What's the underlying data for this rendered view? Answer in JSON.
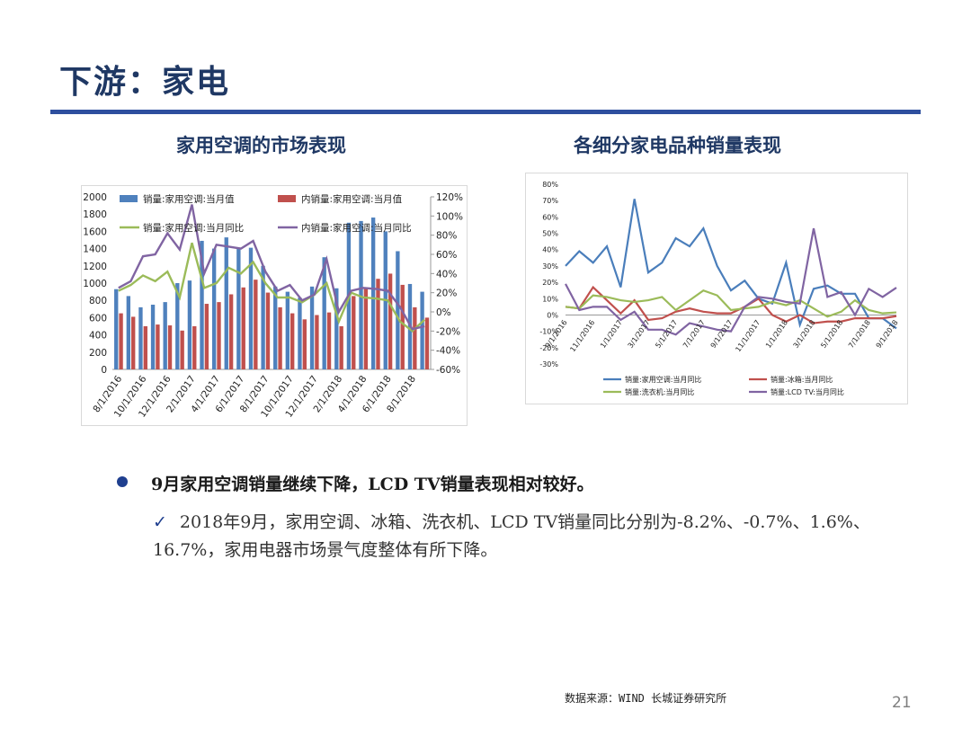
{
  "slide": {
    "title": "下游：家电",
    "bullet": "9月家用空调销量继续下降，LCD TV销量表现相对较好。",
    "check_mark": "✓",
    "detail": "2018年9月，家用空调、冰箱、洗衣机、LCD TV销量同比分别为-8.2%、-0.7%、1.6%、16.7%，家用电器市场景气度整体有所下降。",
    "source": "数据来源：WIND  长城证券研究所",
    "page_number": "21"
  },
  "chart_data": [
    {
      "type": "bar",
      "title": "家用空调的市场表现",
      "x": [
        "8/1/2016",
        "9/1/2016",
        "10/1/2016",
        "11/1/2016",
        "12/1/2016",
        "1/1/2017",
        "2/1/2017",
        "3/1/2017",
        "4/1/2017",
        "5/1/2017",
        "6/1/2017",
        "7/1/2017",
        "8/1/2017",
        "9/1/2017",
        "10/1/2017",
        "11/1/2017",
        "12/1/2017",
        "1/1/2018",
        "2/1/2018",
        "3/1/2018",
        "4/1/2018",
        "5/1/2018",
        "6/1/2018",
        "7/1/2018",
        "8/1/2018",
        "9/1/2018"
      ],
      "x_tick_labels": [
        "8/1/2016",
        "10/1/2016",
        "12/1/2016",
        "2/1/2017",
        "4/1/2017",
        "6/1/2017",
        "8/1/2017",
        "10/1/2017",
        "12/1/2017",
        "2/1/2018",
        "4/1/2018",
        "6/1/2018",
        "8/1/2018"
      ],
      "y_left": {
        "ticks": [
          "2000",
          "1800",
          "1600",
          "1400",
          "1200",
          "1000",
          "800",
          "600",
          "400",
          "200",
          "0"
        ],
        "range": [
          0,
          2000
        ]
      },
      "y_right": {
        "ticks": [
          "120%",
          "100%",
          "80%",
          "60%",
          "40%",
          "20%",
          "0%",
          "-20%",
          "-40%",
          "-60%"
        ],
        "range": [
          -60,
          120
        ]
      },
      "series": [
        {
          "name": "销量:家用空调:当月值",
          "kind": "bar",
          "axis": "left",
          "color": "#4f81bd",
          "values": [
            930,
            850,
            720,
            750,
            780,
            1000,
            1030,
            1490,
            1400,
            1530,
            1400,
            1410,
            1200,
            960,
            900,
            830,
            960,
            1300,
            940,
            1700,
            1720,
            1760,
            1600,
            1370,
            990,
            900
          ]
        },
        {
          "name": "内销量:家用空调:当月值",
          "kind": "bar",
          "axis": "left",
          "color": "#c0504d",
          "values": [
            650,
            610,
            500,
            520,
            510,
            450,
            500,
            760,
            780,
            870,
            950,
            1040,
            890,
            720,
            650,
            580,
            630,
            660,
            500,
            850,
            940,
            1050,
            1110,
            980,
            720,
            600
          ]
        },
        {
          "name": "销量:家用空调:当月同比",
          "kind": "line",
          "axis": "right",
          "color": "#9bbb59",
          "values": [
            22,
            28,
            38,
            32,
            42,
            15,
            72,
            25,
            30,
            46,
            40,
            52,
            30,
            15,
            15,
            10,
            18,
            30,
            -10,
            20,
            15,
            14,
            12,
            -10,
            -20,
            -8.2
          ]
        },
        {
          "name": "内销量:家用空调:当月同比",
          "kind": "line",
          "axis": "right",
          "color": "#8064a2",
          "values": [
            25,
            32,
            58,
            60,
            82,
            65,
            112,
            40,
            70,
            68,
            66,
            74,
            42,
            22,
            28,
            12,
            18,
            55,
            0,
            22,
            25,
            24,
            22,
            5,
            -18,
            -15
          ]
        }
      ],
      "legend": "top"
    },
    {
      "type": "line",
      "title": "各细分家电品种销量表现",
      "x": [
        "9/1/2016",
        "10/1/2016",
        "11/1/2016",
        "12/1/2016",
        "1/1/2017",
        "2/1/2017",
        "3/1/2017",
        "4/1/2017",
        "5/1/2017",
        "6/1/2017",
        "7/1/2017",
        "8/1/2017",
        "9/1/2017",
        "10/1/2017",
        "11/1/2017",
        "12/1/2017",
        "1/1/2018",
        "2/1/2018",
        "3/1/2018",
        "4/1/2018",
        "5/1/2018",
        "6/1/2018",
        "7/1/2018",
        "8/1/2018",
        "9/1/2018"
      ],
      "x_tick_labels": [
        "9/1/2016",
        "11/1/2016",
        "1/1/2017",
        "3/1/2017",
        "5/1/2017",
        "7/1/2017",
        "9/1/2017",
        "11/1/2017",
        "1/1/2018",
        "3/1/2018",
        "5/1/2018",
        "7/1/2018",
        "9/1/2018"
      ],
      "y": {
        "ticks": [
          "80%",
          "70%",
          "60%",
          "50%",
          "40%",
          "30%",
          "20%",
          "10%",
          "0%",
          "-10%",
          "-20%",
          "-30%"
        ],
        "range": [
          -30,
          80
        ]
      },
      "series": [
        {
          "name": "销量:家用空调:当月同比",
          "color": "#4a7ebb",
          "values": [
            30,
            39,
            32,
            42,
            17,
            71,
            26,
            32,
            47,
            42,
            53,
            30,
            15,
            21,
            10,
            7,
            32,
            -6,
            16,
            18,
            13,
            13,
            -2,
            -2,
            -8.2
          ]
        },
        {
          "name": "销量:冰箱:当月同比",
          "color": "#c0504d",
          "values": [
            5,
            4,
            17,
            9,
            1,
            9,
            -3,
            -2,
            2,
            4,
            2,
            1,
            1,
            5,
            10,
            0,
            -4,
            0,
            -5,
            -4,
            -4,
            -2,
            -2,
            -2,
            -0.7
          ]
        },
        {
          "name": "销量:洗衣机:当月同比",
          "color": "#9bbb59",
          "values": [
            5,
            4,
            12,
            11,
            9,
            8,
            9,
            11,
            3,
            9,
            15,
            12,
            3,
            4,
            5,
            8,
            6,
            9,
            4,
            -1,
            2,
            9,
            3,
            1,
            1.6
          ]
        },
        {
          "name": "销量:LCD TV:当月同比",
          "color": "#8064a2",
          "values": [
            19,
            3,
            5,
            5,
            -3,
            2,
            -9,
            -9,
            -12,
            -5,
            -7,
            -9,
            -10,
            5,
            11,
            10,
            8,
            7,
            53,
            11,
            14,
            0,
            16,
            11,
            16.7
          ]
        }
      ],
      "legend": "bottom"
    }
  ]
}
